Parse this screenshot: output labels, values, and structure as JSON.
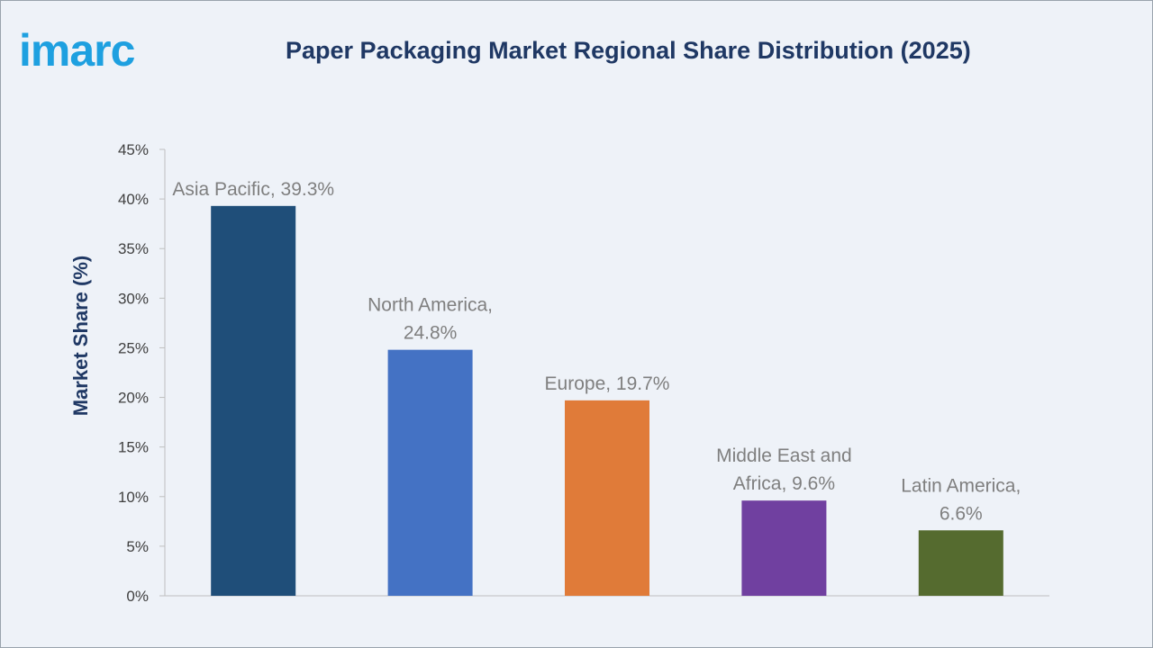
{
  "brand": {
    "logo_text": "imarc",
    "logo_color": "#1ea0e0"
  },
  "chart_data": {
    "type": "bar",
    "title": "Paper Packaging Market Regional Share Distribution (2025)",
    "xlabel": "",
    "ylabel": "Market Share (%)",
    "ylim": [
      0,
      45
    ],
    "yticks": [
      0,
      5,
      10,
      15,
      20,
      25,
      30,
      35,
      40,
      45
    ],
    "ytick_labels": [
      "0%",
      "5%",
      "10%",
      "15%",
      "20%",
      "25%",
      "30%",
      "35%",
      "40%",
      "45%"
    ],
    "categories": [
      "Asia Pacific",
      "North America",
      "Europe",
      "Middle East and Africa",
      "Latin America"
    ],
    "values": [
      39.3,
      24.8,
      19.7,
      9.6,
      6.6
    ],
    "data_labels": [
      [
        "Asia Pacific, 39.3%"
      ],
      [
        "North America,",
        "24.8%"
      ],
      [
        "Europe, 19.7%"
      ],
      [
        "Middle East and",
        "Africa, 9.6%"
      ],
      [
        "Latin America,",
        "6.6%"
      ]
    ],
    "colors": [
      "#1f4e79",
      "#4472c4",
      "#e07b39",
      "#7040a0",
      "#556b2f"
    ],
    "grid": false,
    "legend": "none"
  }
}
